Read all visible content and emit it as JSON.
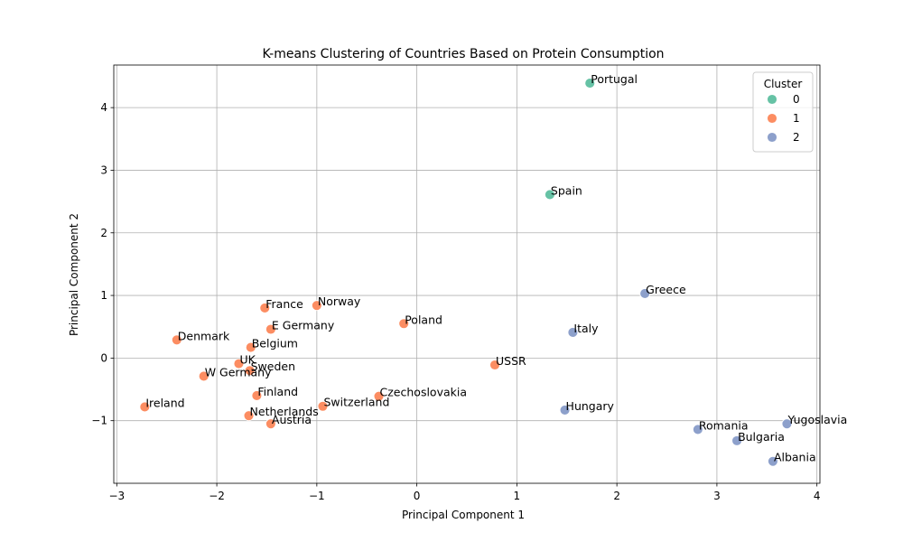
{
  "chart_data": {
    "type": "scatter",
    "title": "K-means Clustering of Countries Based on Protein Consumption",
    "xlabel": "Principal Component 1",
    "ylabel": "Principal Component 2",
    "xlim": [
      -3.03,
      4.03
    ],
    "ylim": [
      -2.0,
      4.68
    ],
    "xticks": [
      -3,
      -2,
      -1,
      0,
      1,
      2,
      3,
      4
    ],
    "xtick_labels": [
      "−3",
      "−2",
      "−1",
      "0",
      "1",
      "2",
      "3",
      "4"
    ],
    "yticks": [
      -1,
      0,
      1,
      2,
      3,
      4
    ],
    "ytick_labels": [
      "−1",
      "0",
      "1",
      "2",
      "3",
      "4"
    ],
    "grid": true,
    "legend": {
      "title": "Cluster",
      "placement": "top-right",
      "entries": [
        {
          "label": "0",
          "cluster": 0
        },
        {
          "label": "1",
          "cluster": 1
        },
        {
          "label": "2",
          "cluster": 2
        }
      ]
    },
    "cluster_colors": [
      "#66c2a5",
      "#fc8d62",
      "#8da0cb"
    ],
    "points": [
      {
        "label": "Portugal",
        "x": 1.73,
        "y": 4.39,
        "cluster": 0
      },
      {
        "label": "Spain",
        "x": 1.33,
        "y": 2.61,
        "cluster": 0
      },
      {
        "label": "Greece",
        "x": 2.28,
        "y": 1.03,
        "cluster": 2
      },
      {
        "label": "Italy",
        "x": 1.56,
        "y": 0.41,
        "cluster": 2
      },
      {
        "label": "Hungary",
        "x": 1.48,
        "y": -0.83,
        "cluster": 2
      },
      {
        "label": "Yugoslavia",
        "x": 3.7,
        "y": -1.05,
        "cluster": 2
      },
      {
        "label": "Romania",
        "x": 2.81,
        "y": -1.14,
        "cluster": 2
      },
      {
        "label": "Bulgaria",
        "x": 3.2,
        "y": -1.32,
        "cluster": 2
      },
      {
        "label": "Albania",
        "x": 3.56,
        "y": -1.65,
        "cluster": 2
      },
      {
        "label": "Norway",
        "x": -1.0,
        "y": 0.84,
        "cluster": 1
      },
      {
        "label": "France",
        "x": -1.52,
        "y": 0.8,
        "cluster": 1
      },
      {
        "label": "Poland",
        "x": -0.13,
        "y": 0.55,
        "cluster": 1
      },
      {
        "label": "E Germany",
        "x": -1.46,
        "y": 0.46,
        "cluster": 1
      },
      {
        "label": "Denmark",
        "x": -2.4,
        "y": 0.29,
        "cluster": 1
      },
      {
        "label": "Belgium",
        "x": -1.66,
        "y": 0.17,
        "cluster": 1
      },
      {
        "label": "UK",
        "x": -1.78,
        "y": -0.09,
        "cluster": 1
      },
      {
        "label": "Sweden",
        "x": -1.67,
        "y": -0.2,
        "cluster": 1
      },
      {
        "label": "USSR",
        "x": 0.78,
        "y": -0.11,
        "cluster": 1
      },
      {
        "label": "W Germany",
        "x": -2.13,
        "y": -0.29,
        "cluster": 1
      },
      {
        "label": "Finland",
        "x": -1.6,
        "y": -0.6,
        "cluster": 1
      },
      {
        "label": "Czechoslovakia",
        "x": -0.38,
        "y": -0.61,
        "cluster": 1
      },
      {
        "label": "Switzerland",
        "x": -0.94,
        "y": -0.77,
        "cluster": 1
      },
      {
        "label": "Ireland",
        "x": -2.72,
        "y": -0.78,
        "cluster": 1
      },
      {
        "label": "Netherlands",
        "x": -1.68,
        "y": -0.92,
        "cluster": 1
      },
      {
        "label": "Austria",
        "x": -1.46,
        "y": -1.05,
        "cluster": 1
      }
    ]
  }
}
